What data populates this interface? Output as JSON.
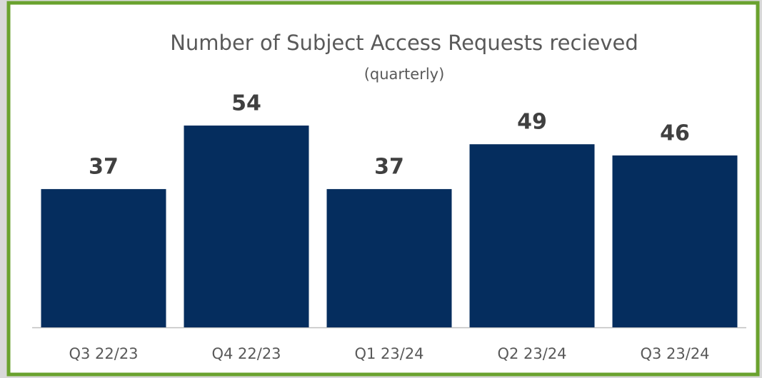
{
  "chart_data": {
    "type": "bar",
    "title": "Number of Subject Access Requests recieved",
    "subtitle": "(quarterly)",
    "categories": [
      "Q3 22/23",
      "Q4 22/23",
      "Q1 23/24",
      "Q2 23/24",
      "Q3 23/24"
    ],
    "values": [
      37,
      54,
      37,
      49,
      46
    ],
    "color": "#052d5e"
  }
}
